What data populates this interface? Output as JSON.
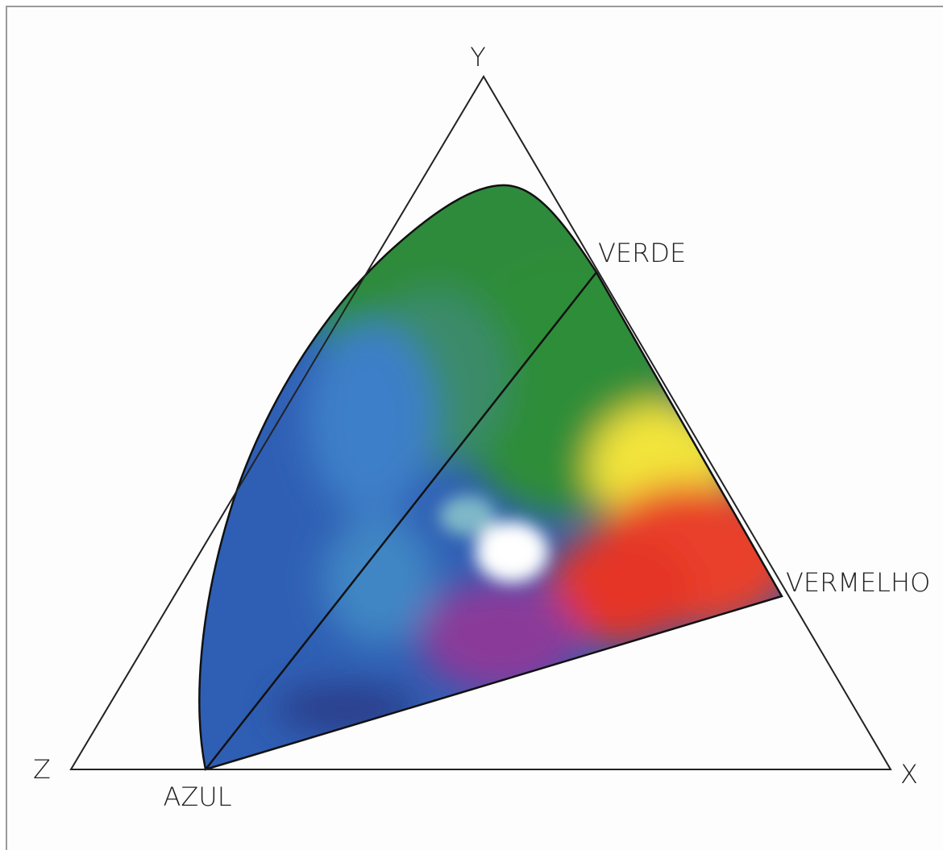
{
  "vertices": {
    "top": "Y",
    "left": "Z",
    "right": "X"
  },
  "primaries": {
    "green": "VERDE",
    "red": "VERMELHO",
    "blue": "AZUL"
  }
}
